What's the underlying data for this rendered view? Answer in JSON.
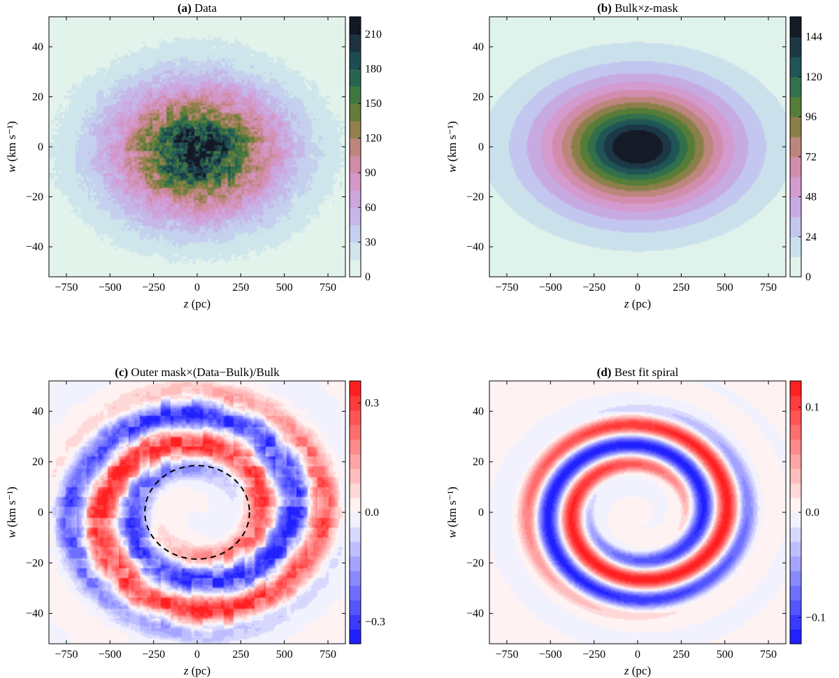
{
  "figure": {
    "description_none": ""
  },
  "chart_data": [
    {
      "type": "heatmap",
      "panel": "a",
      "title_prefix": "(a)",
      "title_rest": " Data",
      "xlabel_var": "z",
      "xlabel_unit": " (pc)",
      "ylabel": "w (km s⁻¹)",
      "xlim": [
        -850,
        850
      ],
      "ylim": [
        -52,
        52
      ],
      "xticks": [
        -750,
        -500,
        -250,
        0,
        250,
        500,
        750
      ],
      "xtick_labels": [
        "−750",
        "−500",
        "−250",
        "0",
        "250",
        "500",
        "750"
      ],
      "yticks": [
        -40,
        -20,
        0,
        20,
        40
      ],
      "ytick_labels": [
        "−40",
        "−20",
        "0",
        "20",
        "40"
      ],
      "colorbar": {
        "cmap": "cubehelix-like",
        "range": [
          0,
          225
        ],
        "ticks": [
          0,
          30,
          60,
          90,
          120,
          150,
          180,
          210
        ],
        "tick_labels": [
          "0",
          "30",
          "60",
          "90",
          "120",
          "150",
          "180",
          "210"
        ],
        "levels": 15
      },
      "field": {
        "kind": "bulk-noisy",
        "peak": 215,
        "sz": 280,
        "sw": 15,
        "center": [
          0,
          -2
        ]
      }
    },
    {
      "type": "heatmap",
      "panel": "b",
      "title_prefix": "(b)",
      "title_rest": " Bulk×z-mask",
      "xlabel_var": "z",
      "xlabel_unit": " (pc)",
      "ylabel": "w (km s⁻¹)",
      "xlim": [
        -850,
        850
      ],
      "ylim": [
        -52,
        52
      ],
      "xticks": [
        -750,
        -500,
        -250,
        0,
        250,
        500,
        750
      ],
      "xtick_labels": [
        "−750",
        "−500",
        "−250",
        "0",
        "250",
        "500",
        "750"
      ],
      "yticks": [
        -40,
        -20,
        0,
        20,
        40
      ],
      "ytick_labels": [
        "−40",
        "−20",
        "0",
        "20",
        "40"
      ],
      "colorbar": {
        "cmap": "cubehelix-like",
        "range": [
          0,
          156
        ],
        "ticks": [
          0,
          24,
          48,
          72,
          96,
          120,
          144
        ],
        "tick_labels": [
          "0",
          "24",
          "48",
          "72",
          "96",
          "120",
          "144"
        ],
        "levels": 13
      },
      "field": {
        "kind": "bulk-smooth",
        "peak": 155,
        "sz": 300,
        "sw": 14,
        "center": [
          0,
          0
        ]
      }
    },
    {
      "type": "heatmap",
      "panel": "c",
      "title_prefix": "(c)",
      "title_rest": " Outer mask×(Data−Bulk)/Bulk",
      "xlabel_var": "z",
      "xlabel_unit": " (pc)",
      "ylabel": "w (km s⁻¹)",
      "xlim": [
        -850,
        850
      ],
      "ylim": [
        -52,
        52
      ],
      "xticks": [
        -750,
        -500,
        -250,
        0,
        250,
        500,
        750
      ],
      "xtick_labels": [
        "−750",
        "−500",
        "−250",
        "0",
        "250",
        "500",
        "750"
      ],
      "yticks": [
        -40,
        -20,
        0,
        20,
        40
      ],
      "ytick_labels": [
        "−40",
        "−20",
        "0",
        "20",
        "40"
      ],
      "colorbar": {
        "cmap": "bwr",
        "range": [
          -0.36,
          0.36
        ],
        "ticks": [
          -0.3,
          0.0,
          0.3
        ],
        "tick_labels": [
          "−0.3",
          "0.0",
          "0.3"
        ],
        "levels": 18
      },
      "field": {
        "kind": "residual",
        "amplitude": 0.34
      },
      "inner_mask_ellipse": {
        "center": [
          0,
          0
        ],
        "semi_z": 300,
        "semi_w": 18.5,
        "style": "dashed"
      }
    },
    {
      "type": "heatmap",
      "panel": "d",
      "title_prefix": "(d)",
      "title_rest": " Best fit spiral",
      "xlabel_var": "z",
      "xlabel_unit": " (pc)",
      "ylabel": "w (km s⁻¹)",
      "xlim": [
        -850,
        850
      ],
      "ylim": [
        -52,
        52
      ],
      "xticks": [
        -750,
        -500,
        -250,
        0,
        250,
        500,
        750
      ],
      "xtick_labels": [
        "−750",
        "−500",
        "−250",
        "0",
        "250",
        "500",
        "750"
      ],
      "yticks": [
        -40,
        -20,
        0,
        20,
        40
      ],
      "ytick_labels": [
        "−40",
        "−20",
        "0",
        "20",
        "40"
      ],
      "colorbar": {
        "cmap": "bwr",
        "range": [
          -0.125,
          0.125
        ],
        "ticks": [
          -0.1,
          0.0,
          0.1
        ],
        "tick_labels": [
          "−0.1",
          "0.0",
          "0.1"
        ],
        "levels": 18
      },
      "field": {
        "kind": "spiral",
        "amplitude": 0.12,
        "winding": 2.7,
        "inner_radius": 0.38
      }
    }
  ]
}
